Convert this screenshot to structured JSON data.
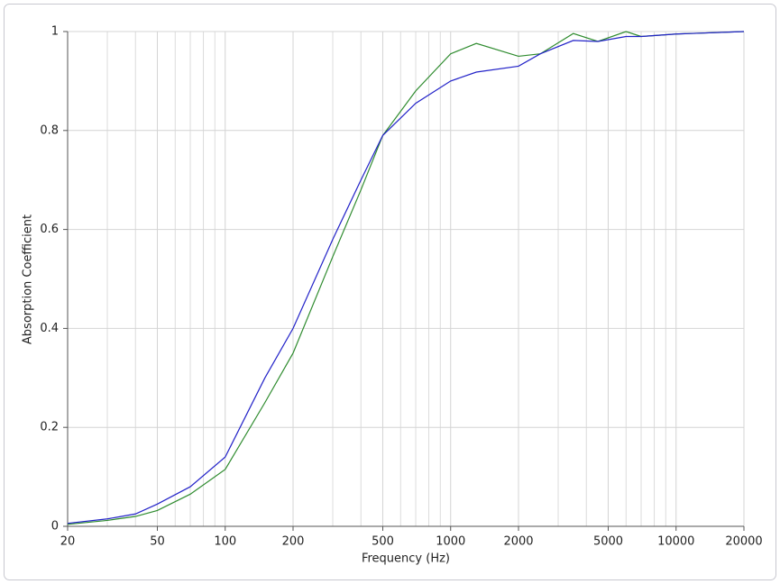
{
  "chart_data": {
    "type": "line",
    "x_label": "Frequency (Hz)",
    "y_label": "Absorption Coefficient",
    "xscale": "log",
    "grid": true,
    "x": [
      20,
      30,
      40,
      50,
      70,
      100,
      150,
      200,
      300,
      400,
      500,
      700,
      1000,
      1300,
      2000,
      2500,
      3500,
      4500,
      6000,
      7000,
      10000,
      20000
    ],
    "series": [
      {
        "color": "#2e8b2e",
        "values": [
          0.004,
          0.012,
          0.02,
          0.032,
          0.065,
          0.115,
          0.25,
          0.35,
          0.545,
          0.68,
          0.79,
          0.88,
          0.955,
          0.976,
          0.95,
          0.955,
          0.996,
          0.98,
          1.0,
          0.99,
          0.995,
          1.0
        ]
      },
      {
        "color": "#2222c8",
        "values": [
          0.006,
          0.015,
          0.025,
          0.045,
          0.08,
          0.14,
          0.3,
          0.4,
          0.58,
          0.7,
          0.79,
          0.855,
          0.9,
          0.918,
          0.93,
          0.955,
          0.982,
          0.98,
          0.99,
          0.99,
          0.995,
          1.0
        ]
      }
    ],
    "xlim": [
      20,
      20000
    ],
    "xticks": [
      20,
      50,
      100,
      200,
      500,
      1000,
      2000,
      5000,
      10000,
      20000
    ],
    "xgrid_minor": [
      30,
      40,
      60,
      70,
      80,
      90,
      300,
      400,
      600,
      700,
      800,
      900,
      3000,
      4000,
      6000,
      7000,
      8000,
      9000
    ],
    "ylim": [
      0,
      1
    ],
    "yticks": [
      0,
      0.2,
      0.4,
      0.6,
      0.8,
      1
    ]
  }
}
